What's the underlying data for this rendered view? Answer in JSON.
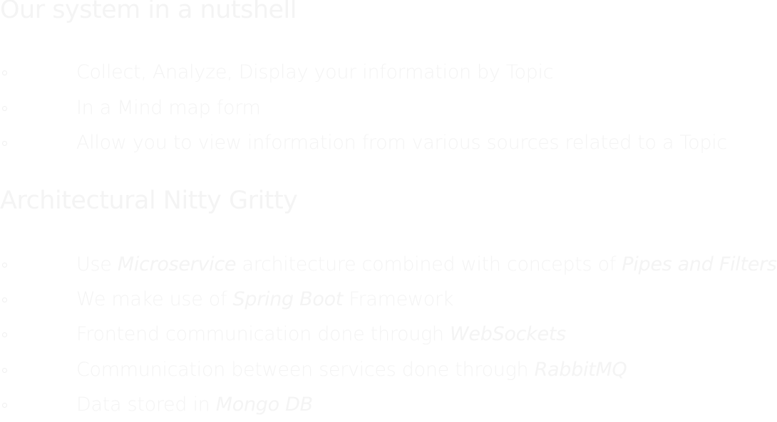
{
  "section1": {
    "title": "Our system in a nutshell",
    "items": [
      {
        "text": "Collect, Analyze, Display your information by Topic"
      },
      {
        "text": "In a Mind map form"
      },
      {
        "text": "Allow you to view information from various sources related to a Topic"
      }
    ]
  },
  "section2": {
    "title": "Architectural Nitty Gritty",
    "items": [
      {
        "pre": "Use ",
        "em": "Microservice",
        "post": " architecture combined with concepts of ",
        "em2": "Pipes and Filters"
      },
      {
        "pre": "We make use of ",
        "em": "Spring Boot",
        "post": " Framework"
      },
      {
        "pre": "Frontend communication done through ",
        "em": "WebSockets"
      },
      {
        "pre": "Communication between services done through ",
        "em": "RabbitMQ"
      },
      {
        "pre": "Data stored in ",
        "em": "Mongo DB"
      }
    ]
  },
  "colors": {
    "background": "#ffffff",
    "text": "#f4f4f4"
  }
}
